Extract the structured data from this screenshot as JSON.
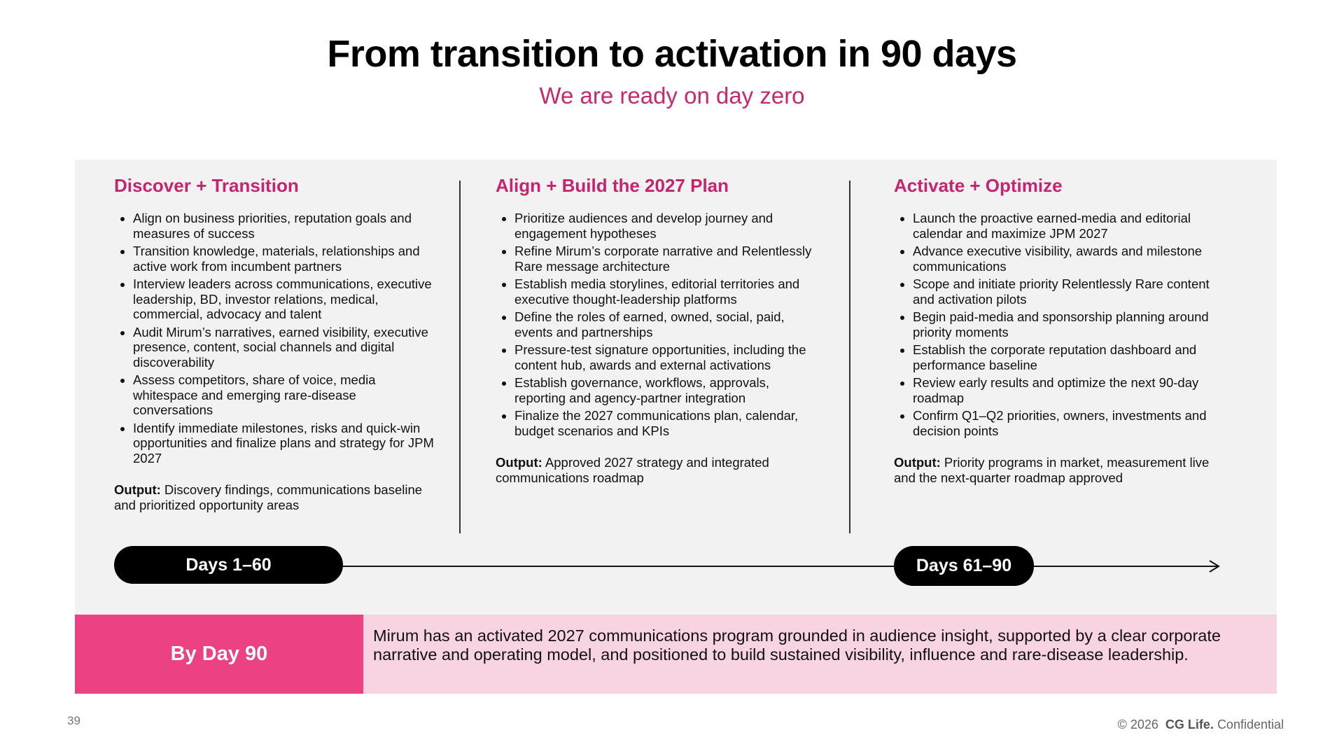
{
  "header": {
    "title": "From transition to activation in 90 days",
    "subtitle": "We are ready on day zero"
  },
  "columns": [
    {
      "title": "Discover + Transition",
      "bullets": [
        "Align on business priorities, reputation goals and measures of success",
        "Transition knowledge, materials, relationships and active work from incumbent partners",
        "Interview leaders across communications, executive leadership, BD, investor relations, medical, commercial, advocacy and talent",
        "Audit Mirum’s narratives, earned visibility, executive presence, content, social channels and digital discoverability",
        "Assess competitors, share of voice, media whitespace and emerging rare-disease conversations",
        "Identify immediate milestones, risks and quick-win opportunities and finalize plans and strategy for JPM 2027"
      ],
      "output_label": "Output:",
      "output_text": "Discovery findings, communications baseline and prioritized opportunity areas"
    },
    {
      "title": "Align + Build the 2027 Plan",
      "bullets": [
        "Prioritize audiences and develop journey and engagement hypotheses",
        "Refine Mirum’s corporate narrative and Relentlessly Rare message architecture",
        "Establish media storylines, editorial territories and executive thought-leadership platforms",
        "Define the roles of earned, owned, social, paid, events and partnerships",
        "Pressure-test signature opportunities, including the content hub, awards and external activations",
        "Establish governance, workflows, approvals, reporting and agency-partner integration",
        "Finalize the 2027 communications plan, calendar, budget scenarios and KPIs"
      ],
      "output_label": "Output:",
      "output_text": "Approved 2027 strategy and integrated communications roadmap"
    },
    {
      "title": "Activate + Optimize",
      "bullets": [
        "Launch the proactive earned-media and editorial calendar and maximize JPM 2027",
        "Advance executive visibility, awards and milestone communications",
        "Scope and initiate priority Relentlessly Rare content and activation pilots",
        "Begin paid-media and sponsorship planning around priority moments",
        "Establish the corporate reputation dashboard and performance baseline",
        "Review early results and optimize the next 90-day roadmap",
        "Confirm Q1–Q2 priorities, owners, investments and decision points"
      ],
      "output_label": "Output:",
      "output_text": "Priority programs in market, measurement live and the next-quarter roadmap approved"
    }
  ],
  "timeline": {
    "phases": [
      "Days 1–60",
      "Days 61–90"
    ]
  },
  "summary": {
    "label": "By Day 90",
    "text": "Mirum has an activated 2027 communications program grounded in audience insight, supported by a clear corporate narrative and operating model, and positioned to build sustained visibility, influence and rare-disease leadership."
  },
  "footer": {
    "page": "39",
    "copyright": "© 2026",
    "brand": "CG Life.",
    "note": "Confidential"
  }
}
